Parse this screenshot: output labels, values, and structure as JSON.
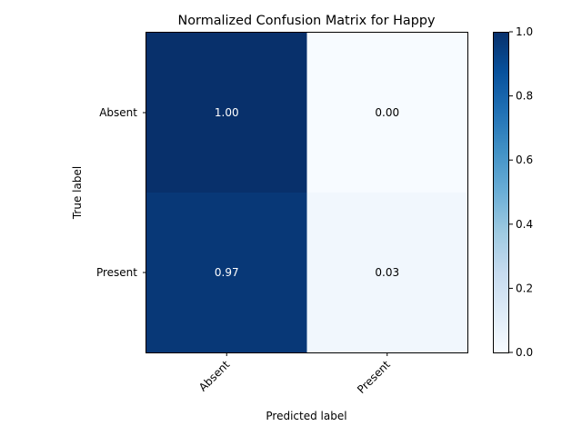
{
  "chart_data": {
    "type": "heatmap",
    "title": "Normalized Confusion Matrix for Happy",
    "xlabel": "Predicted label",
    "ylabel": "True label",
    "x_categories": [
      "Absent",
      "Present"
    ],
    "y_categories": [
      "Absent",
      "Present"
    ],
    "values": [
      [
        1.0,
        0.0
      ],
      [
        0.97,
        0.03
      ]
    ],
    "cell_labels": [
      [
        "1.00",
        "0.00"
      ],
      [
        "0.97",
        "0.03"
      ]
    ],
    "colormap": "Blues",
    "colorbar": {
      "range": [
        0,
        1
      ],
      "ticks": [
        "0.0",
        "0.2",
        "0.4",
        "0.6",
        "0.8",
        "1.0"
      ]
    }
  }
}
